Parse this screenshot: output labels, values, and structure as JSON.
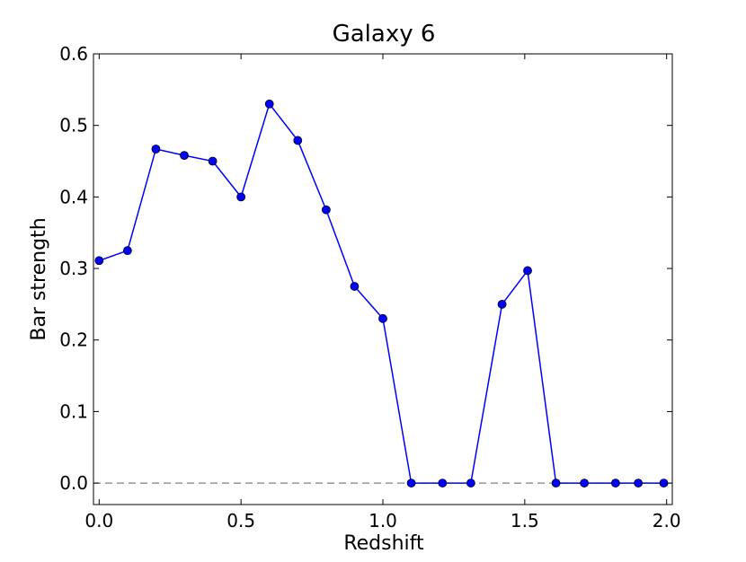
{
  "chart_data": {
    "type": "line",
    "title": "Galaxy 6",
    "xlabel": "Redshift",
    "ylabel": "Bar strength",
    "xlim": [
      -0.02,
      2.02
    ],
    "ylim": [
      -0.03,
      0.6
    ],
    "xticks": [
      0.0,
      0.5,
      1.0,
      1.5,
      2.0
    ],
    "xtick_labels": [
      "0.0",
      "0.5",
      "1.0",
      "1.5",
      "2.0"
    ],
    "yticks": [
      0.0,
      0.1,
      0.2,
      0.3,
      0.4,
      0.5,
      0.6
    ],
    "ytick_labels": [
      "0.0",
      "0.1",
      "0.2",
      "0.3",
      "0.4",
      "0.5",
      "0.6"
    ],
    "grid": false,
    "reference_line": {
      "y": 0.0,
      "style": "dashed",
      "color": "#808080"
    },
    "series": [
      {
        "color": "#0000ff",
        "marker": "circle",
        "x": [
          0.0,
          0.1,
          0.2,
          0.3,
          0.4,
          0.5,
          0.6,
          0.7,
          0.8,
          0.9,
          1.0,
          1.1,
          1.21,
          1.31,
          1.42,
          1.51,
          1.61,
          1.71,
          1.82,
          1.9,
          1.99
        ],
        "y": [
          0.311,
          0.325,
          0.467,
          0.458,
          0.45,
          0.4,
          0.53,
          0.479,
          0.382,
          0.275,
          0.23,
          0.0,
          0.0,
          0.0,
          0.25,
          0.297,
          0.0,
          0.0,
          0.0,
          0.0,
          0.0
        ]
      }
    ]
  }
}
